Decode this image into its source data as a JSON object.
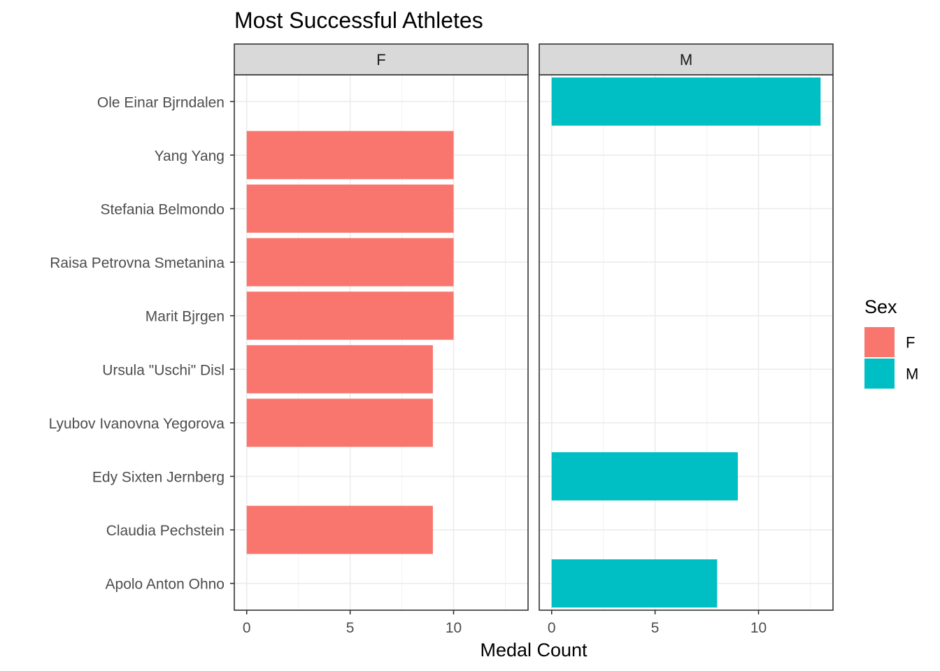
{
  "chart_data": {
    "type": "bar",
    "orientation": "horizontal",
    "facet_by": "Sex",
    "title": "Most Successful Athletes",
    "xlabel": "Medal Count",
    "ylabel": "",
    "xlim": [
      -0.6,
      13.6
    ],
    "xticks": [
      0,
      5,
      10
    ],
    "grid": true,
    "categories": [
      "Apolo Anton Ohno",
      "Claudia Pechstein",
      "Edy Sixten Jernberg",
      "Lyubov Ivanovna Yegorova",
      "Ursula \"Uschi\" Disl",
      "Marit Bjrgen",
      "Raisa Petrovna Smetanina",
      "Stefania Belmondo",
      "Yang Yang",
      "Ole Einar Bjrndalen"
    ],
    "facets": [
      {
        "label": "F",
        "color": "#F8766D",
        "values": [
          null,
          9,
          null,
          9,
          9,
          10,
          10,
          10,
          10,
          null
        ]
      },
      {
        "label": "M",
        "color": "#00BFC4",
        "values": [
          8,
          null,
          9,
          null,
          null,
          null,
          null,
          null,
          null,
          13
        ]
      }
    ],
    "legend": {
      "title": "Sex",
      "position": "right",
      "entries": [
        {
          "label": "F",
          "color": "#F8766D"
        },
        {
          "label": "M",
          "color": "#00BFC4"
        }
      ]
    }
  }
}
